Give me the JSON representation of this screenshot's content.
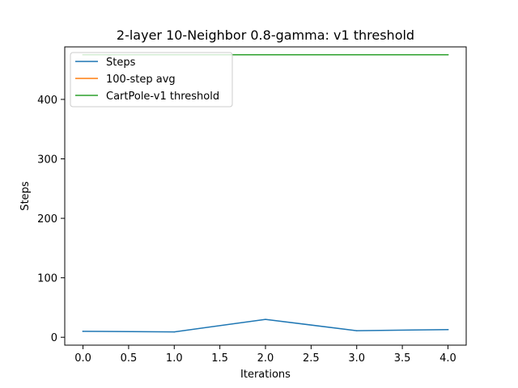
{
  "chart_data": {
    "type": "line",
    "title": "2-layer 10-Neighbor 0.8-gamma: v1 threshold",
    "xlabel": "Iterations",
    "ylabel": "Steps",
    "xlim": [
      -0.2,
      4.2
    ],
    "ylim": [
      -13.3,
      488.3
    ],
    "x_ticks": [
      0.0,
      0.5,
      1.0,
      1.5,
      2.0,
      2.5,
      3.0,
      3.5,
      4.0
    ],
    "x_tick_labels": [
      "0.0",
      "0.5",
      "1.0",
      "1.5",
      "2.0",
      "2.5",
      "3.0",
      "3.5",
      "4.0"
    ],
    "y_ticks": [
      0,
      100,
      200,
      300,
      400
    ],
    "y_tick_labels": [
      "0",
      "100",
      "200",
      "300",
      "400"
    ],
    "grid": false,
    "legend_position": "top-left",
    "series": [
      {
        "name": "Steps",
        "color": "#1f77b4",
        "x": [
          0,
          1,
          2,
          3,
          4
        ],
        "y": [
          10,
          9,
          30,
          11,
          13
        ]
      },
      {
        "name": "100-step avg",
        "color": "#ff7f0e",
        "x": [],
        "y": []
      },
      {
        "name": "CartPole-v1 threshold",
        "color": "#2ca02c",
        "x": [
          0,
          4
        ],
        "y": [
          475,
          475
        ]
      }
    ]
  }
}
